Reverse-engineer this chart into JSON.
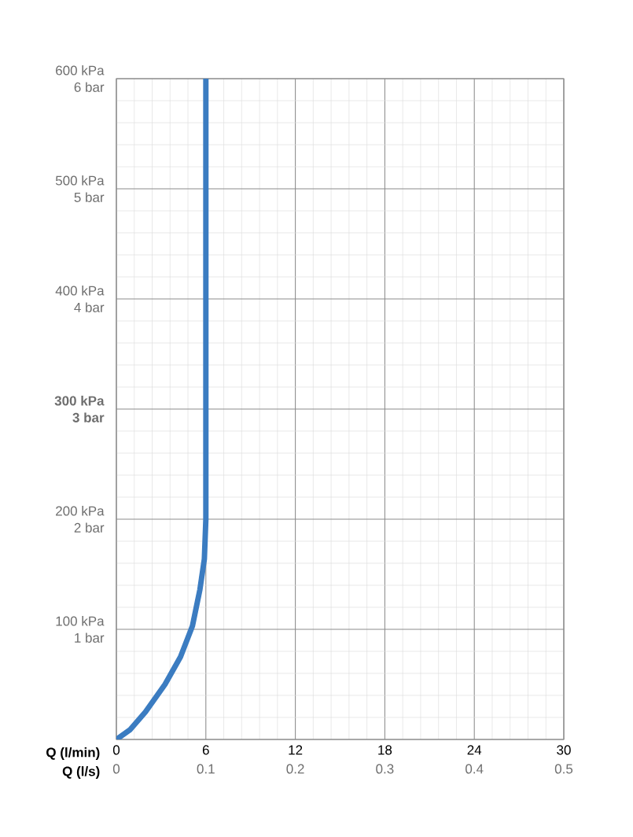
{
  "chart_data": {
    "type": "line",
    "x": [
      0,
      0.9,
      1.95,
      3.26,
      4.3,
      5.1,
      5.6,
      5.9,
      6,
      6
    ],
    "series": [
      {
        "color": "#3b7cc1",
        "values": [
          0,
          8.6,
          25,
          50,
          75,
          103,
          136,
          164,
          200,
          600
        ]
      }
    ],
    "xlabel": "Q (l/min)",
    "xlim": [
      0,
      30
    ],
    "xticks": [
      0,
      6,
      12,
      18,
      24,
      30
    ],
    "x2label": "Q (l/s)",
    "x2lim": [
      0,
      0.5
    ],
    "x2ticks": [
      0,
      0.1,
      0.2,
      0.3,
      0.4,
      0.5
    ],
    "ylim": [
      0,
      600
    ],
    "yticks": [
      {
        "value": 0,
        "label": null
      },
      {
        "value": 100,
        "label": "100 kPa"
      },
      {
        "value": 200,
        "label": "200 kPa"
      },
      {
        "value": 300,
        "label": "**300 kPa**"
      },
      {
        "value": 400,
        "label": "400 kPa"
      },
      {
        "value": 500,
        "label": "500 kPa"
      },
      {
        "value": 600,
        "label": "600 kPa"
      }
    ],
    "y2lim": [
      0,
      6
    ],
    "y2ticks": [
      {
        "value": 0,
        "label": null
      },
      {
        "value": 1,
        "label": "1 bar"
      },
      {
        "value": 2,
        "label": "2 bar"
      },
      {
        "value": 3,
        "label": "**3 bar**"
      },
      {
        "value": 4,
        "label": "4 bar"
      },
      {
        "value": 5,
        "label": "5 bar"
      },
      {
        "value": 6,
        "label": "6 bar"
      }
    ],
    "grid": true,
    "marker": "none",
    "line_style": "solid"
  }
}
